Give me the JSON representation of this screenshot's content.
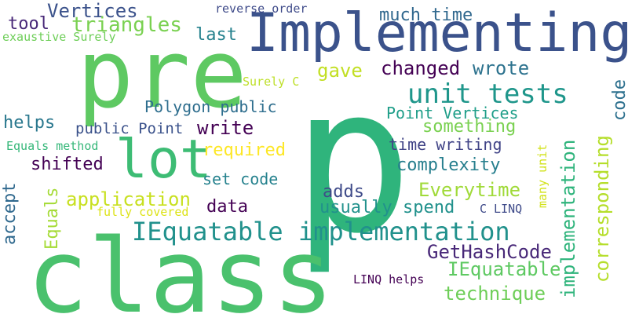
{
  "words": [
    {
      "text": "p",
      "color": "#2fb47c"
    },
    {
      "text": "class",
      "color": "#4ac16d"
    },
    {
      "text": "pre",
      "color": "#5ec962"
    },
    {
      "text": "Implementing",
      "color": "#3b528b"
    },
    {
      "text": "lot",
      "color": "#3dbc74"
    },
    {
      "text": "IEquatable implementation",
      "color": "#21918c"
    },
    {
      "text": "unit tests",
      "color": "#1f968b"
    },
    {
      "text": "Vertices",
      "color": "#3b528b"
    },
    {
      "text": "triangles",
      "color": "#7ad151"
    },
    {
      "text": "tool",
      "color": "#482878"
    },
    {
      "text": "much time",
      "color": "#31688e"
    },
    {
      "text": "last",
      "color": "#26828e"
    },
    {
      "text": "reverse order",
      "color": "#3e4a89"
    },
    {
      "text": "exaustive Surely",
      "color": "#6ece58"
    },
    {
      "text": "gave",
      "color": "#c2df23"
    },
    {
      "text": "changed",
      "color": "#440154"
    },
    {
      "text": "wrote",
      "color": "#2c728e"
    },
    {
      "text": "Surely C",
      "color": "#bddf26"
    },
    {
      "text": "Polygon public",
      "color": "#2e6e8e"
    },
    {
      "text": "Point Vertices",
      "color": "#1f9e89"
    },
    {
      "text": "something",
      "color": "#7ad151"
    },
    {
      "text": "helps",
      "color": "#2a788e"
    },
    {
      "text": "public Point",
      "color": "#3b528b"
    },
    {
      "text": "write",
      "color": "#440154"
    },
    {
      "text": "time writing",
      "color": "#414487"
    },
    {
      "text": "required",
      "color": "#fde725"
    },
    {
      "text": "Equals method",
      "color": "#35b779"
    },
    {
      "text": "shifted",
      "color": "#440154"
    },
    {
      "text": "complexity",
      "color": "#277f8e"
    },
    {
      "text": "set code",
      "color": "#26828e"
    },
    {
      "text": "adds",
      "color": "#3e4a89"
    },
    {
      "text": "Everytime",
      "color": "#a0da39"
    },
    {
      "text": "application",
      "color": "#c8e020"
    },
    {
      "text": "data",
      "color": "#440154"
    },
    {
      "text": "usually spend",
      "color": "#21918c"
    },
    {
      "text": "fully covered",
      "color": "#dde318"
    },
    {
      "text": "C LINQ",
      "color": "#3e4a89"
    },
    {
      "text": "GetHashCode",
      "color": "#482878"
    },
    {
      "text": "IEquatable",
      "color": "#5ec962"
    },
    {
      "text": "technique",
      "color": "#6ece58"
    },
    {
      "text": "LINQ helps",
      "color": "#440154"
    },
    {
      "text": "accept",
      "color": "#30698e"
    },
    {
      "text": "Equals",
      "color": "#a5db36"
    },
    {
      "text": "code",
      "color": "#2d708e"
    },
    {
      "text": "corresponding",
      "color": "#b5de2b"
    },
    {
      "text": "implementation",
      "color": "#2fb47c"
    },
    {
      "text": "many unit",
      "color": "#d2e21b"
    }
  ]
}
